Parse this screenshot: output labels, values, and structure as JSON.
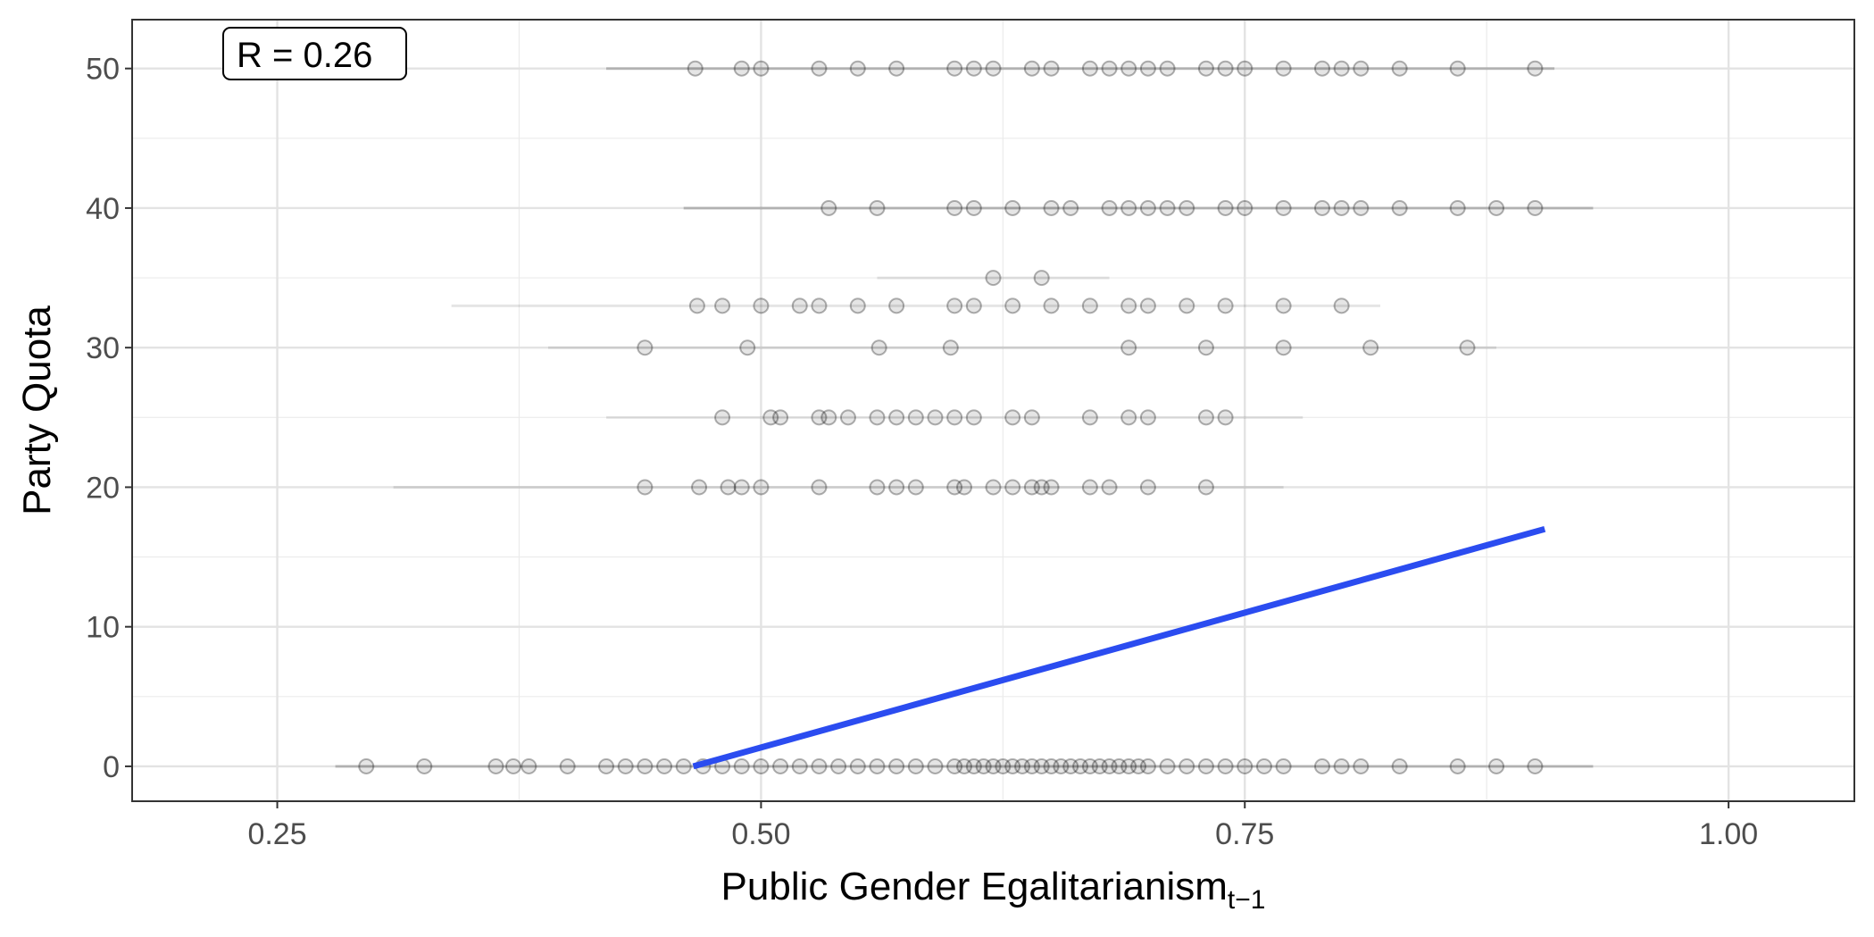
{
  "chart_data": {
    "type": "scatter",
    "xlabel": "Public Gender Egalitarianism",
    "xlabel_subscript": "t−1",
    "ylabel": "Party Quota",
    "annotation": "R = 0.26",
    "xlim": [
      0.175,
      1.065
    ],
    "ylim": [
      -2.5,
      53.5
    ],
    "x_ticks": [
      0.25,
      0.5,
      0.75,
      1.0
    ],
    "x_tick_labels": [
      "0.25",
      "0.50",
      "0.75",
      "1.00"
    ],
    "y_ticks": [
      0,
      10,
      20,
      30,
      40,
      50
    ],
    "y_tick_labels": [
      "0",
      "10",
      "20",
      "30",
      "40",
      "50"
    ],
    "grid": true,
    "point_color": "#000000",
    "fit_color": "#2b4cf0",
    "series": [
      {
        "type": "scatter",
        "points": [
          {
            "y": 0,
            "x": [
              0.296,
              0.326,
              0.363,
              0.372,
              0.38,
              0.4,
              0.42,
              0.43,
              0.44,
              0.45,
              0.46,
              0.47,
              0.48,
              0.49,
              0.5,
              0.51,
              0.52,
              0.53,
              0.54,
              0.55,
              0.56,
              0.57,
              0.58,
              0.59,
              0.6,
              0.605,
              0.61,
              0.615,
              0.62,
              0.625,
              0.63,
              0.635,
              0.64,
              0.645,
              0.65,
              0.655,
              0.66,
              0.665,
              0.67,
              0.675,
              0.68,
              0.685,
              0.69,
              0.695,
              0.7,
              0.71,
              0.72,
              0.73,
              0.74,
              0.75,
              0.76,
              0.77,
              0.79,
              0.8,
              0.81,
              0.83,
              0.86,
              0.88,
              0.9
            ]
          },
          {
            "y": 20,
            "x": [
              0.44,
              0.468,
              0.483,
              0.49,
              0.5,
              0.53,
              0.56,
              0.57,
              0.58,
              0.6,
              0.605,
              0.62,
              0.63,
              0.64,
              0.645,
              0.65,
              0.67,
              0.68,
              0.7,
              0.73
            ]
          },
          {
            "y": 25,
            "x": [
              0.48,
              0.505,
              0.51,
              0.53,
              0.535,
              0.545,
              0.56,
              0.57,
              0.58,
              0.59,
              0.6,
              0.61,
              0.63,
              0.64,
              0.67,
              0.69,
              0.7,
              0.73,
              0.74
            ]
          },
          {
            "y": 30,
            "x": [
              0.44,
              0.493,
              0.561,
              0.598,
              0.69,
              0.73,
              0.77,
              0.815,
              0.865
            ]
          },
          {
            "y": 33,
            "x": [
              0.467,
              0.48,
              0.5,
              0.52,
              0.53,
              0.55,
              0.57,
              0.6,
              0.61,
              0.63,
              0.65,
              0.67,
              0.69,
              0.7,
              0.72,
              0.74,
              0.77,
              0.8
            ]
          },
          {
            "y": 35,
            "x": [
              0.62,
              0.645
            ]
          },
          {
            "y": 40,
            "x": [
              0.535,
              0.56,
              0.6,
              0.61,
              0.63,
              0.65,
              0.66,
              0.68,
              0.69,
              0.7,
              0.71,
              0.72,
              0.74,
              0.75,
              0.77,
              0.79,
              0.8,
              0.81,
              0.83,
              0.86,
              0.88,
              0.9
            ]
          },
          {
            "y": 50,
            "x": [
              0.466,
              0.49,
              0.5,
              0.53,
              0.55,
              0.57,
              0.6,
              0.61,
              0.62,
              0.64,
              0.65,
              0.67,
              0.68,
              0.69,
              0.7,
              0.71,
              0.73,
              0.74,
              0.75,
              0.77,
              0.79,
              0.8,
              0.81,
              0.83,
              0.86,
              0.9
            ]
          }
        ],
        "ranges": [
          {
            "y": 0,
            "from": 0.28,
            "to": 0.93
          },
          {
            "y": 20,
            "from": 0.31,
            "to": 0.77
          },
          {
            "y": 25,
            "from": 0.42,
            "to": 0.78
          },
          {
            "y": 30,
            "from": 0.39,
            "to": 0.88
          },
          {
            "y": 33,
            "from": 0.34,
            "to": 0.82
          },
          {
            "y": 35,
            "from": 0.56,
            "to": 0.68
          },
          {
            "y": 40,
            "from": 0.46,
            "to": 0.93
          },
          {
            "y": 50,
            "from": 0.42,
            "to": 0.91
          }
        ]
      },
      {
        "type": "line",
        "x": [
          0.465,
          0.905
        ],
        "y": [
          0.0,
          17.0
        ]
      }
    ]
  }
}
